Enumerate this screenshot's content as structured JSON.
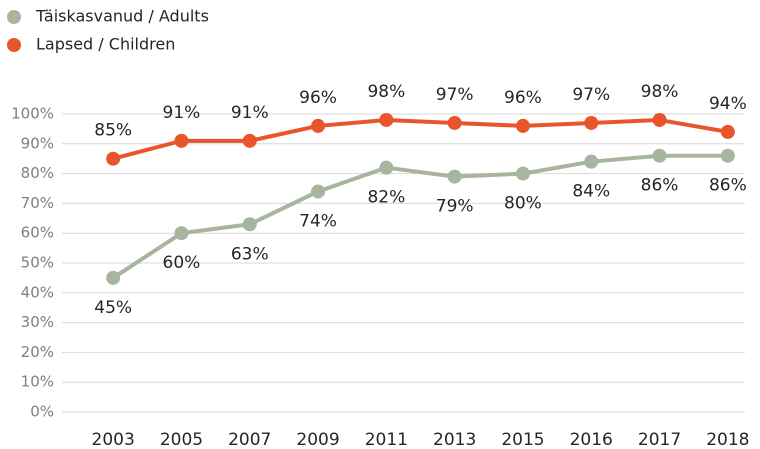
{
  "chart_data": {
    "type": "line",
    "categories": [
      "2003",
      "2005",
      "2007",
      "2009",
      "2011",
      "2013",
      "2015",
      "2016",
      "2017",
      "2018"
    ],
    "series": [
      {
        "name": "Täiskasvanud / Adults",
        "color": "#a7b59e",
        "values": [
          45,
          60,
          63,
          74,
          82,
          79,
          80,
          84,
          86,
          86
        ],
        "value_labels": [
          "45%",
          "60%",
          "63%",
          "74%",
          "82%",
          "79%",
          "80%",
          "84%",
          "86%",
          "86%"
        ]
      },
      {
        "name": "Lapsed / Children",
        "color": "#e8552a",
        "values": [
          85,
          91,
          91,
          96,
          98,
          97,
          96,
          97,
          98,
          94
        ],
        "value_labels": [
          "85%",
          "91%",
          "91%",
          "96%",
          "98%",
          "97%",
          "96%",
          "97%",
          "98%",
          "94%"
        ]
      }
    ],
    "ylim": [
      0,
      100
    ],
    "yticks": [
      {
        "value": 0,
        "label": "0%"
      },
      {
        "value": 10,
        "label": "10%"
      },
      {
        "value": 20,
        "label": "20%"
      },
      {
        "value": 30,
        "label": "30%"
      },
      {
        "value": 40,
        "label": "40%"
      },
      {
        "value": 50,
        "label": "50%"
      },
      {
        "value": 60,
        "label": "60%"
      },
      {
        "value": 70,
        "label": "70%"
      },
      {
        "value": 80,
        "label": "80%"
      },
      {
        "value": 90,
        "label": "90%"
      },
      {
        "value": 100,
        "label": "100%"
      }
    ],
    "grid": true,
    "legend": "top-left"
  }
}
